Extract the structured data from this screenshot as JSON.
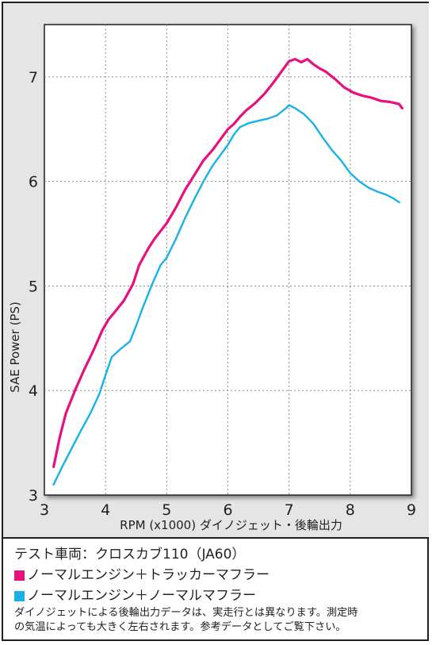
{
  "chart_data": {
    "type": "line",
    "ylabel": "SAE Power (PS)",
    "xlabel": "RPM (x1000) ダイノジェット・後輪出力",
    "xlim": [
      3,
      9
    ],
    "ylim": [
      3,
      7.5
    ],
    "x_ticks": [
      "3",
      "4",
      "5",
      "6",
      "7",
      "8",
      "9"
    ],
    "y_ticks": [
      "3",
      "4",
      "5",
      "6",
      "7"
    ],
    "grid": true,
    "series": [
      {
        "name": "ノーマルエンジン＋トラッカーマフラー",
        "color": "#e6117f",
        "x": [
          3.15,
          3.25,
          3.35,
          3.5,
          3.65,
          3.8,
          3.95,
          4.05,
          4.15,
          4.3,
          4.45,
          4.55,
          4.7,
          4.8,
          5.0,
          5.15,
          5.3,
          5.45,
          5.6,
          5.75,
          5.9,
          6.0,
          6.1,
          6.2,
          6.3,
          6.45,
          6.6,
          6.75,
          6.9,
          7.0,
          7.1,
          7.2,
          7.3,
          7.4,
          7.5,
          7.6,
          7.75,
          7.9,
          8.05,
          8.2,
          8.35,
          8.5,
          8.65,
          8.8,
          8.85
        ],
        "values": [
          3.27,
          3.55,
          3.78,
          4.0,
          4.2,
          4.38,
          4.58,
          4.68,
          4.75,
          4.86,
          5.02,
          5.2,
          5.36,
          5.45,
          5.6,
          5.75,
          5.92,
          6.06,
          6.2,
          6.3,
          6.42,
          6.5,
          6.55,
          6.62,
          6.68,
          6.75,
          6.84,
          6.95,
          7.07,
          7.15,
          7.17,
          7.14,
          7.17,
          7.12,
          7.08,
          7.05,
          6.98,
          6.9,
          6.85,
          6.82,
          6.8,
          6.77,
          6.76,
          6.74,
          6.7
        ]
      },
      {
        "name": "ノーマルエンジン＋ノーマルマフラー",
        "color": "#19b1e7",
        "x": [
          3.15,
          3.3,
          3.45,
          3.6,
          3.75,
          3.9,
          4.0,
          4.1,
          4.25,
          4.4,
          4.5,
          4.6,
          4.75,
          4.9,
          5.0,
          5.15,
          5.3,
          5.45,
          5.6,
          5.75,
          5.9,
          6.0,
          6.1,
          6.2,
          6.35,
          6.5,
          6.65,
          6.8,
          6.95,
          7.0,
          7.1,
          7.25,
          7.4,
          7.55,
          7.7,
          7.85,
          8.0,
          8.15,
          8.3,
          8.45,
          8.6,
          8.7,
          8.8
        ],
        "values": [
          3.1,
          3.28,
          3.45,
          3.62,
          3.78,
          3.97,
          4.15,
          4.32,
          4.4,
          4.47,
          4.62,
          4.78,
          5.0,
          5.2,
          5.27,
          5.45,
          5.65,
          5.83,
          6.0,
          6.15,
          6.27,
          6.35,
          6.45,
          6.52,
          6.56,
          6.58,
          6.6,
          6.63,
          6.7,
          6.73,
          6.7,
          6.64,
          6.55,
          6.42,
          6.3,
          6.2,
          6.08,
          6.0,
          5.94,
          5.9,
          5.87,
          5.84,
          5.8
        ]
      }
    ]
  },
  "legend": {
    "title": "テスト車両：クロスカブ110（JA60）",
    "items": [
      {
        "label": "ノーマルエンジン＋トラッカーマフラー",
        "color": "#e6117f"
      },
      {
        "label": "ノーマルエンジン＋ノーマルマフラー",
        "color": "#19b1e7"
      }
    ],
    "note_line1": "ダイノジェットによる後輪出力データは、実走行とは異なります。測定時",
    "note_line2": "の気温によっても大きく左右されます。参考データとしてご覧下さい。"
  }
}
